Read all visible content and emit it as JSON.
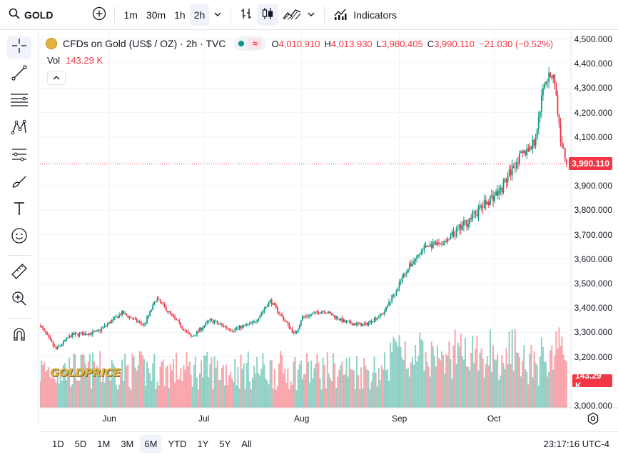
{
  "toolbar": {
    "symbol": "GOLD",
    "intervals": [
      "1m",
      "30m",
      "1h",
      "2h"
    ],
    "active_interval": "2h",
    "indicators_label": "Indicators"
  },
  "legend": {
    "title": "CFDs on Gold (US$ / OZ) · 2h · TVC",
    "open_label": "O",
    "open": "4,010.910",
    "high_label": "H",
    "high": "4,013.930",
    "low_label": "L",
    "low": "3,980.405",
    "close_label": "C",
    "close": "3,990.110",
    "change": "−21.030 (−0.52%)",
    "vol_label": "Vol",
    "vol_value": "143.29 K"
  },
  "axis": {
    "y_ticks": [
      "4,500.000",
      "4,400.000",
      "4,300.000",
      "4,200.000",
      "4,100.000",
      "4,000.000",
      "3,900.000",
      "3,800.000",
      "3,700.000",
      "3,600.000",
      "3,500.000",
      "3,400.000",
      "3,300.000",
      "3,200.000",
      "3,100.000",
      "3,000.000"
    ],
    "x_ticks": [
      "Jun",
      "Jul",
      "Aug",
      "Sep",
      "Oct"
    ],
    "price_tag": "3,990.110",
    "vol_tag": "143.29 K"
  },
  "ranges": [
    "1D",
    "5D",
    "1M",
    "3M",
    "6M",
    "YTD",
    "1Y",
    "5Y",
    "All"
  ],
  "active_range": "6M",
  "clock": "23:17:16 UTC-4",
  "watermark": "GOLDPRICE",
  "colors": {
    "up": "#089981",
    "down": "#f23645",
    "accent": "#2962ff"
  },
  "chart_data": {
    "type": "candlestick",
    "ylim": [
      3000,
      4500
    ],
    "x_ticks": [
      "Jun",
      "Jul",
      "Aug",
      "Sep",
      "Oct"
    ],
    "last_price": 3990.11,
    "trend": {
      "x": [
        "May 10",
        "May 15",
        "May 20",
        "May 28",
        "Jun 5",
        "Jun 12",
        "Jun 16",
        "Jun 20",
        "Jun 27",
        "Jul 3",
        "Jul 10",
        "Jul 17",
        "Jul 22",
        "Jul 30",
        "Aug 1",
        "Aug 8",
        "Aug 15",
        "Aug 21",
        "Aug 27",
        "Sep 3",
        "Sep 9",
        "Sep 16",
        "Sep 23",
        "Sep 30",
        "Oct 3",
        "Oct 8",
        "Oct 14",
        "Oct 17",
        "Oct 20",
        "Oct 22",
        "Oct 24"
      ],
      "y": [
        3330,
        3230,
        3290,
        3300,
        3380,
        3330,
        3440,
        3380,
        3280,
        3350,
        3310,
        3340,
        3430,
        3290,
        3360,
        3390,
        3340,
        3330,
        3380,
        3550,
        3650,
        3670,
        3760,
        3850,
        3880,
        4000,
        4080,
        4330,
        4360,
        4100,
        3990
      ]
    },
    "volume_last": 143290
  }
}
